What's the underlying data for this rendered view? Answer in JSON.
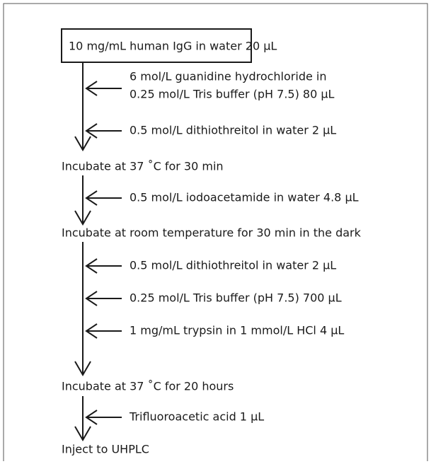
{
  "start": "10 mg/mL human IgG in water 20 μL",
  "stages": [
    {
      "additions": [
        [
          "6 mol/L guanidine hydrochloride in",
          "0.25 mol/L Tris buffer (pH 7.5) 80 μL"
        ],
        [
          "0.5 mol/L dithiothreitol in water 2 μL"
        ]
      ],
      "result": "Incubate at 37 ˚C for 30 min"
    },
    {
      "additions": [
        [
          "0.5 mol/L iodoacetamide in water 4.8 μL"
        ]
      ],
      "result": "Incubate at room temperature for 30 min in the dark"
    },
    {
      "additions": [
        [
          "0.5 mol/L dithiothreitol in water 2 μL"
        ],
        [
          "0.25 mol/L Tris buffer (pH 7.5) 700 μL"
        ],
        [
          "1 mg/mL trypsin in 1 mmol/L HCl 4 μL"
        ]
      ],
      "result": "Incubate at 37 ˚C for 20 hours"
    },
    {
      "additions": [
        [
          "Trifluoroacetic acid 1 μL"
        ]
      ],
      "result": "Inject to UHPLC"
    }
  ]
}
